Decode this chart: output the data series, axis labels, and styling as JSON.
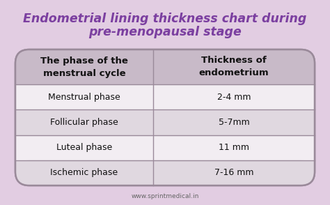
{
  "title_line1": "Endometrial lining thickness chart during",
  "title_line2": "pre-menopausal stage",
  "title_color": "#7B3FA0",
  "bg_color": "#E2CDE2",
  "table_bg": "#F2EDF2",
  "header_bg": "#C8BAC8",
  "row_bg_even": "#F2EDF2",
  "row_bg_odd": "#E0D8E0",
  "border_color": "#9A8A9A",
  "col1_header": "The phase of the\nmenstrual cycle",
  "col2_header": "Thickness of\nendometrium",
  "rows": [
    [
      "Menstrual phase",
      "2-4 mm"
    ],
    [
      "Follicular phase",
      "5-7mm"
    ],
    [
      "Luteal phase",
      "11 mm"
    ],
    [
      "Ischemic phase",
      "7-16 mm"
    ]
  ],
  "footer": "www.sprintmedical.in",
  "title_fontsize": 12.5,
  "header_fontsize": 9.5,
  "cell_fontsize": 9.0,
  "footer_fontsize": 6.5
}
